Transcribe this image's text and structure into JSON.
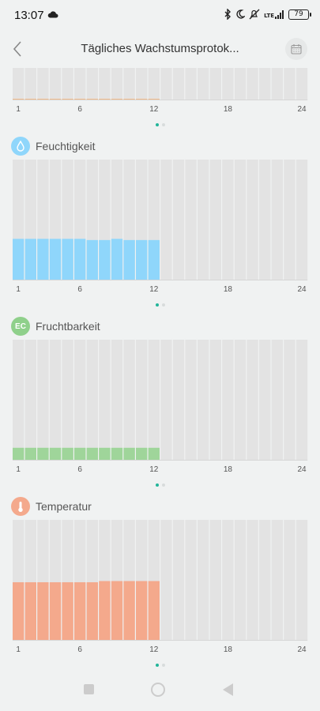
{
  "status_bar": {
    "time": "13:07",
    "cloud_icon": "cloud-icon",
    "battery": "79",
    "network": "LTE",
    "icons": [
      "bluetooth-icon",
      "moon-icon",
      "mute-icon",
      "signal-icon",
      "battery-icon"
    ]
  },
  "app_bar": {
    "title": "Tägliches Wachstumsprotok...",
    "back_icon": "chevron-left-icon",
    "calendar_icon": "calendar-icon"
  },
  "x_ticks": [
    "1",
    "6",
    "12",
    "18",
    "24"
  ],
  "colors": {
    "empty_bar": "#e3e3e3",
    "humidity": "#8fd6fb",
    "fertility": "#9fd59a",
    "temperature": "#f4a98c",
    "light": "#f1b988",
    "active_dot": "#23b59a"
  },
  "sections": {
    "light": {
      "label": ""
    },
    "humidity": {
      "label": "Feuchtigkeit",
      "icon": "water-drop-icon"
    },
    "fertility": {
      "label": "Fruchtbarkeit",
      "badge": "EC",
      "icon": "ec-icon"
    },
    "temperature": {
      "label": "Temperatur",
      "icon": "thermometer-icon"
    }
  },
  "chart_data": [
    {
      "name_key": "light",
      "type": "bar",
      "x": [
        1,
        2,
        3,
        4,
        5,
        6,
        7,
        8,
        9,
        10,
        11,
        12,
        13,
        14,
        15,
        16,
        17,
        18,
        19,
        20,
        21,
        22,
        23,
        24
      ],
      "values": [
        0.012,
        0.012,
        0.012,
        0.012,
        0.012,
        0.012,
        0.012,
        0.012,
        0.012,
        0.012,
        0.012,
        0.012,
        null,
        null,
        null,
        null,
        null,
        null,
        null,
        null,
        null,
        null,
        null,
        null
      ],
      "ylim": [
        0,
        1
      ],
      "xticks": [
        "1",
        "6",
        "12",
        "18",
        "24"
      ]
    },
    {
      "name_key": "humidity",
      "type": "bar",
      "x": [
        1,
        2,
        3,
        4,
        5,
        6,
        7,
        8,
        9,
        10,
        11,
        12,
        13,
        14,
        15,
        16,
        17,
        18,
        19,
        20,
        21,
        22,
        23,
        24
      ],
      "values": [
        0.34,
        0.34,
        0.34,
        0.34,
        0.34,
        0.34,
        0.33,
        0.33,
        0.34,
        0.33,
        0.33,
        0.33,
        null,
        null,
        null,
        null,
        null,
        null,
        null,
        null,
        null,
        null,
        null,
        null
      ],
      "ylim": [
        0,
        1
      ],
      "xticks": [
        "1",
        "6",
        "12",
        "18",
        "24"
      ]
    },
    {
      "name_key": "fertility",
      "type": "bar",
      "x": [
        1,
        2,
        3,
        4,
        5,
        6,
        7,
        8,
        9,
        10,
        11,
        12,
        13,
        14,
        15,
        16,
        17,
        18,
        19,
        20,
        21,
        22,
        23,
        24
      ],
      "values": [
        0.1,
        0.1,
        0.1,
        0.1,
        0.1,
        0.1,
        0.1,
        0.1,
        0.1,
        0.1,
        0.1,
        0.1,
        null,
        null,
        null,
        null,
        null,
        null,
        null,
        null,
        null,
        null,
        null,
        null
      ],
      "ylim": [
        0,
        1
      ],
      "xticks": [
        "1",
        "6",
        "12",
        "18",
        "24"
      ]
    },
    {
      "name_key": "temperature",
      "type": "bar",
      "x": [
        1,
        2,
        3,
        4,
        5,
        6,
        7,
        8,
        9,
        10,
        11,
        12,
        13,
        14,
        15,
        16,
        17,
        18,
        19,
        20,
        21,
        22,
        23,
        24
      ],
      "values": [
        0.48,
        0.48,
        0.48,
        0.48,
        0.48,
        0.48,
        0.48,
        0.49,
        0.49,
        0.49,
        0.49,
        0.49,
        null,
        null,
        null,
        null,
        null,
        null,
        null,
        null,
        null,
        null,
        null,
        null
      ],
      "ylim": [
        0,
        1
      ],
      "xticks": [
        "1",
        "6",
        "12",
        "18",
        "24"
      ]
    }
  ],
  "pager": {
    "count": 2,
    "active": 0
  },
  "nav_bar": {
    "recents": "recents-icon",
    "home": "home-icon",
    "back": "back-icon"
  }
}
